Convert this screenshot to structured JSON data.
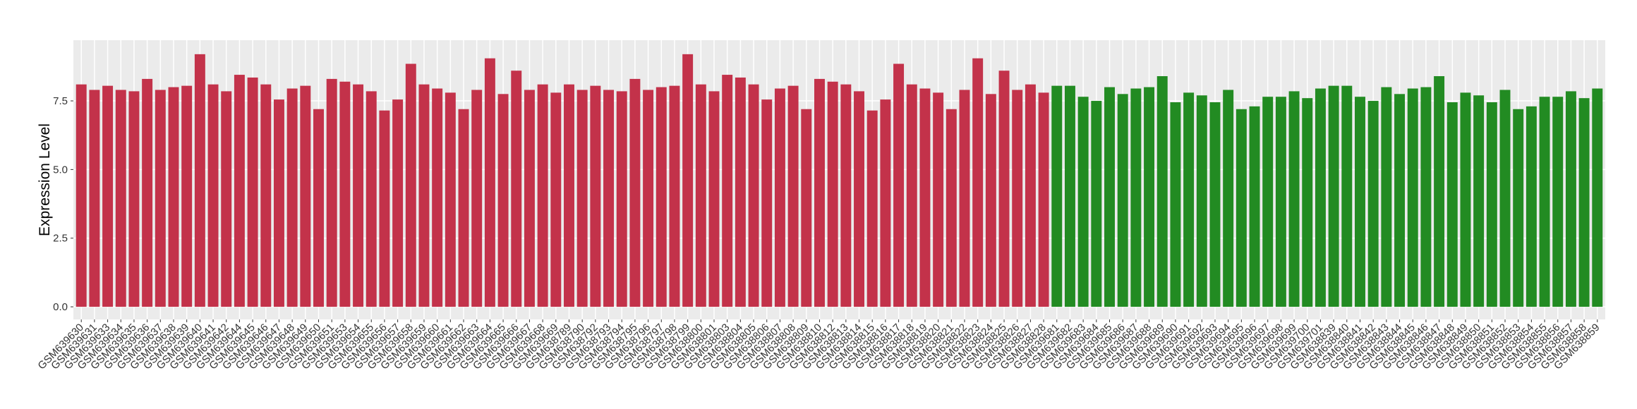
{
  "chart_data": {
    "type": "bar",
    "y_label": "Expression Level",
    "categories": [
      "GSM639630",
      "GSM639631",
      "GSM639633",
      "GSM639634",
      "GSM639635",
      "GSM639636",
      "GSM639637",
      "GSM639638",
      "GSM639639",
      "GSM639640",
      "GSM639641",
      "GSM639642",
      "GSM639644",
      "GSM639645",
      "GSM639646",
      "GSM639647",
      "GSM639648",
      "GSM639649",
      "GSM639650",
      "GSM639651",
      "GSM639653",
      "GSM639654",
      "GSM639655",
      "GSM639656",
      "GSM639657",
      "GSM639658",
      "GSM639659",
      "GSM639660",
      "GSM639661",
      "GSM639662",
      "GSM639663",
      "GSM639664",
      "GSM639665",
      "GSM639666",
      "GSM639667",
      "GSM639668",
      "GSM639669",
      "GSM638789",
      "GSM638790",
      "GSM638792",
      "GSM638793",
      "GSM638794",
      "GSM638795",
      "GSM638796",
      "GSM638797",
      "GSM638798",
      "GSM638799",
      "GSM638800",
      "GSM638801",
      "GSM638803",
      "GSM638804",
      "GSM638805",
      "GSM638806",
      "GSM638807",
      "GSM638808",
      "GSM638809",
      "GSM638810",
      "GSM638812",
      "GSM638813",
      "GSM638814",
      "GSM638815",
      "GSM638816",
      "GSM638817",
      "GSM638818",
      "GSM638819",
      "GSM638820",
      "GSM638821",
      "GSM638822",
      "GSM638823",
      "GSM638824",
      "GSM638825",
      "GSM638826",
      "GSM638827",
      "GSM638828",
      "GSM639681",
      "GSM639682",
      "GSM639683",
      "GSM639684",
      "GSM639685",
      "GSM639686",
      "GSM639687",
      "GSM639688",
      "GSM639689",
      "GSM639690",
      "GSM639691",
      "GSM639692",
      "GSM639693",
      "GSM639694",
      "GSM639695",
      "GSM639696",
      "GSM639697",
      "GSM639698",
      "GSM639699",
      "GSM639700",
      "GSM639701",
      "GSM638839",
      "GSM638840",
      "GSM638841",
      "GSM638842",
      "GSM638843",
      "GSM638844",
      "GSM638845",
      "GSM638846",
      "GSM638847",
      "GSM638848",
      "GSM638849",
      "GSM638850",
      "GSM638851",
      "GSM638852",
      "GSM638853",
      "GSM638854",
      "GSM638855",
      "GSM638856",
      "GSM638857",
      "GSM638858",
      "GSM638859"
    ],
    "values": [
      8.1,
      7.9,
      8.05,
      7.9,
      7.85,
      8.3,
      7.9,
      8.0,
      8.05,
      9.2,
      8.1,
      7.85,
      8.45,
      8.35,
      8.1,
      7.55,
      7.95,
      8.05,
      7.2,
      8.3,
      8.2,
      8.1,
      7.85,
      7.15,
      7.55,
      8.85,
      8.1,
      7.95,
      7.8,
      7.2,
      7.9,
      9.05,
      7.75,
      8.6,
      7.9,
      8.1,
      7.8,
      8.1,
      7.9,
      8.05,
      7.9,
      7.85,
      8.3,
      7.9,
      8.0,
      8.05,
      9.2,
      8.1,
      7.85,
      8.45,
      8.35,
      8.1,
      7.55,
      7.95,
      8.05,
      7.2,
      8.3,
      8.2,
      8.1,
      7.85,
      7.15,
      7.55,
      8.85,
      8.1,
      7.95,
      7.8,
      7.2,
      7.9,
      9.05,
      7.75,
      8.6,
      7.9,
      8.1,
      7.8,
      8.05,
      8.05,
      7.65,
      7.5,
      8.0,
      7.75,
      7.95,
      8.0,
      8.4,
      7.45,
      7.8,
      7.7,
      7.45,
      7.9,
      7.2,
      7.3,
      7.65,
      7.65,
      7.85,
      7.6,
      7.95,
      8.05,
      8.05,
      7.65,
      7.5,
      8.0,
      7.75,
      7.95,
      8.0,
      8.4,
      7.45,
      7.8,
      7.7,
      7.45,
      7.9,
      7.2,
      7.3,
      7.65,
      7.65,
      7.85,
      7.6,
      7.95
    ],
    "colors": [
      "#c3324a",
      "#c3324a",
      "#c3324a",
      "#c3324a",
      "#c3324a",
      "#c3324a",
      "#c3324a",
      "#c3324a",
      "#c3324a",
      "#c3324a",
      "#c3324a",
      "#c3324a",
      "#c3324a",
      "#c3324a",
      "#c3324a",
      "#c3324a",
      "#c3324a",
      "#c3324a",
      "#c3324a",
      "#c3324a",
      "#c3324a",
      "#c3324a",
      "#c3324a",
      "#c3324a",
      "#c3324a",
      "#c3324a",
      "#c3324a",
      "#c3324a",
      "#c3324a",
      "#c3324a",
      "#c3324a",
      "#c3324a",
      "#c3324a",
      "#c3324a",
      "#c3324a",
      "#c3324a",
      "#c3324a",
      "#c3324a",
      "#c3324a",
      "#c3324a",
      "#c3324a",
      "#c3324a",
      "#c3324a",
      "#c3324a",
      "#c3324a",
      "#c3324a",
      "#c3324a",
      "#c3324a",
      "#c3324a",
      "#c3324a",
      "#c3324a",
      "#c3324a",
      "#c3324a",
      "#c3324a",
      "#c3324a",
      "#c3324a",
      "#c3324a",
      "#c3324a",
      "#c3324a",
      "#c3324a",
      "#c3324a",
      "#c3324a",
      "#c3324a",
      "#c3324a",
      "#c3324a",
      "#c3324a",
      "#c3324a",
      "#c3324a",
      "#c3324a",
      "#c3324a",
      "#c3324a",
      "#c3324a",
      "#c3324a",
      "#c3324a",
      "#228b22",
      "#228b22",
      "#228b22",
      "#228b22",
      "#228b22",
      "#228b22",
      "#228b22",
      "#228b22",
      "#228b22",
      "#228b22",
      "#228b22",
      "#228b22",
      "#228b22",
      "#228b22",
      "#228b22",
      "#228b22",
      "#228b22",
      "#228b22",
      "#228b22",
      "#228b22",
      "#228b22",
      "#228b22",
      "#228b22",
      "#228b22",
      "#228b22",
      "#228b22",
      "#228b22",
      "#228b22",
      "#228b22",
      "#228b22",
      "#228b22",
      "#228b22",
      "#228b22",
      "#228b22",
      "#228b22",
      "#228b22",
      "#228b22",
      "#228b22",
      "#228b22",
      "#228b22",
      "#228b22",
      "#228b22"
    ],
    "ylim": [
      -0.46,
      9.71
    ],
    "yticks": [
      {
        "value": 0,
        "label": "0.0"
      },
      2.5,
      {
        "value": 5,
        "label": "5.0"
      },
      7.5
    ],
    "grid": true
  }
}
